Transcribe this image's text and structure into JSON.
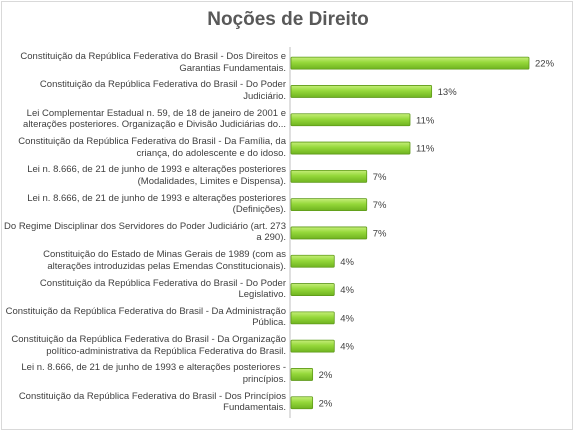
{
  "chart_data": {
    "type": "bar",
    "orientation": "horizontal",
    "title": "Noções de Direito",
    "xlabel": "",
    "ylabel": "",
    "unit": "%",
    "grid": false,
    "legend": "none",
    "bar_color": "#8ccf2e",
    "bar_edge_color": "#5f9a1a",
    "categories": [
      [
        "Constituição da República Federativa do Brasil - Dos Direitos e",
        "Garantias Fundamentais."
      ],
      [
        "Constituição da República Federativa do Brasil - Do Poder",
        "Judiciário."
      ],
      [
        "Lei Complementar Estadual n. 59, de 18 de janeiro de 2001 e",
        "alterações posteriores. Organização e Divisão Judiciárias do..."
      ],
      [
        "Constituição da República Federativa do Brasil - Da Família, da",
        "criança, do adolescente e do idoso."
      ],
      [
        "Lei n. 8.666, de 21 de junho de 1993 e alterações posteriores",
        "(Modalidades, Limites e Dispensa)."
      ],
      [
        "Lei n. 8.666, de 21 de junho de 1993 e alterações posteriores",
        "(Definições)."
      ],
      [
        "Do Regime Disciplinar dos Servidores do Poder Judiciário (art. 273",
        "a 290)."
      ],
      [
        "Constituição do Estado de Minas Gerais de 1989 (com as",
        "alterações introduzidas pelas Emendas Constitucionais)."
      ],
      [
        "Constituição da República Federativa do Brasil - Do Poder",
        "Legislativo."
      ],
      [
        "Constituição da República Federativa do Brasil - Da Administração",
        "Pública."
      ],
      [
        "Constituição da República Federativa do Brasil - Da Organização",
        "político-administrativa da República Federativa do Brasil."
      ],
      [
        "Lei n. 8.666, de 21 de junho de 1993 e alterações posteriores -",
        "princípios."
      ],
      [
        "Constituição da República Federativa do Brasil - Dos Princípios",
        "Fundamentais."
      ]
    ],
    "values": [
      22,
      13,
      11,
      11,
      7,
      7,
      7,
      4,
      4,
      4,
      4,
      2,
      2
    ],
    "value_labels": [
      "22%",
      "13%",
      "11%",
      "11%",
      "7%",
      "7%",
      "7%",
      "4%",
      "4%",
      "4%",
      "4%",
      "2%",
      "2%"
    ]
  }
}
